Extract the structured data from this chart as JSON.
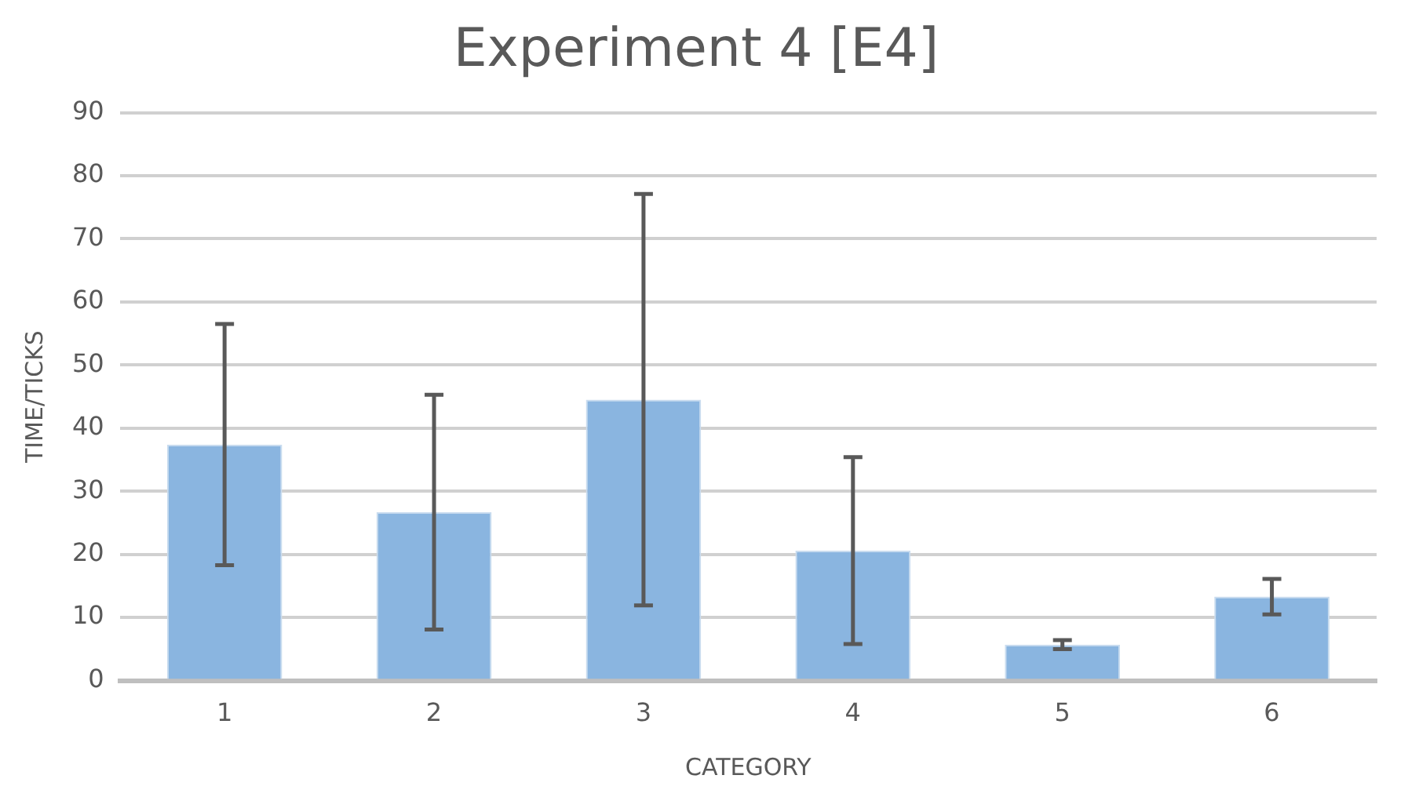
{
  "chart_data": {
    "type": "bar",
    "title": "Experiment 4 [E4]",
    "xlabel": "CATEGORY",
    "ylabel": "TIME/TICKS",
    "categories": [
      "1",
      "2",
      "3",
      "4",
      "5",
      "6"
    ],
    "values": [
      37.4,
      26.7,
      44.5,
      20.6,
      5.7,
      13.3
    ],
    "errors": [
      19.1,
      18.6,
      32.6,
      14.8,
      0.7,
      2.8
    ],
    "color": "#8ab5e0",
    "ylim": [
      0,
      90
    ],
    "yticks": [
      0,
      10,
      20,
      30,
      40,
      50,
      60,
      70,
      80,
      90
    ],
    "grid": "y",
    "legend": false
  }
}
